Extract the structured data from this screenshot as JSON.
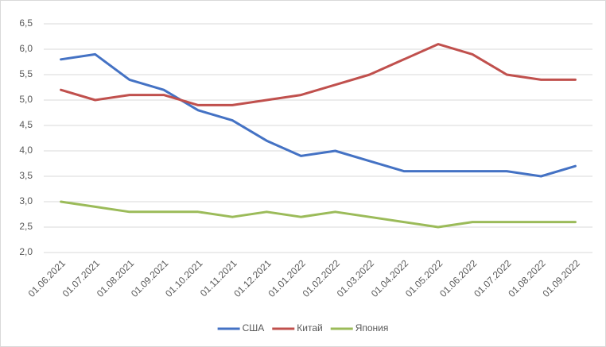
{
  "chart_data": {
    "type": "line",
    "categories": [
      "01.06.2021",
      "01.07.2021",
      "01.08.2021",
      "01.09.2021",
      "01.10.2021",
      "01.11.2021",
      "01.12.2021",
      "01.01.2022",
      "01.02.2022",
      "01.03.2022",
      "01.04.2022",
      "01.05.2022",
      "01.06.2022",
      "01.07.2022",
      "01.08.2022",
      "01.09.2022"
    ],
    "series": [
      {
        "name": "США",
        "color": "#4472c4",
        "values": [
          5.8,
          5.9,
          5.4,
          5.2,
          4.8,
          4.6,
          4.2,
          3.9,
          4.0,
          3.8,
          3.6,
          3.6,
          3.6,
          3.6,
          3.5,
          3.7
        ]
      },
      {
        "name": "Китай",
        "color": "#c0504d",
        "values": [
          5.2,
          5.0,
          5.1,
          5.1,
          4.9,
          4.9,
          5.0,
          5.1,
          5.3,
          5.5,
          5.8,
          6.1,
          5.9,
          5.5,
          5.4,
          5.4
        ]
      },
      {
        "name": "Япония",
        "color": "#9bbb59",
        "values": [
          3.0,
          2.9,
          2.8,
          2.8,
          2.8,
          2.7,
          2.8,
          2.7,
          2.8,
          2.7,
          2.6,
          2.5,
          2.6,
          2.6,
          2.6,
          2.6
        ]
      }
    ],
    "ylim": [
      2,
      6.5
    ],
    "yticks": [
      {
        "value": 2,
        "label": "2,0"
      },
      {
        "value": 2.5,
        "label": "2,5"
      },
      {
        "value": 3,
        "label": "3,0"
      },
      {
        "value": 3.5,
        "label": "3,5"
      },
      {
        "value": 4,
        "label": "4,0"
      },
      {
        "value": 4.5,
        "label": "4,5"
      },
      {
        "value": 5,
        "label": "5,0"
      },
      {
        "value": 5.5,
        "label": "5,5"
      },
      {
        "value": 6,
        "label": "6,0"
      },
      {
        "value": 6.5,
        "label": "6,5"
      }
    ],
    "grid": true,
    "legend": "bottom"
  }
}
